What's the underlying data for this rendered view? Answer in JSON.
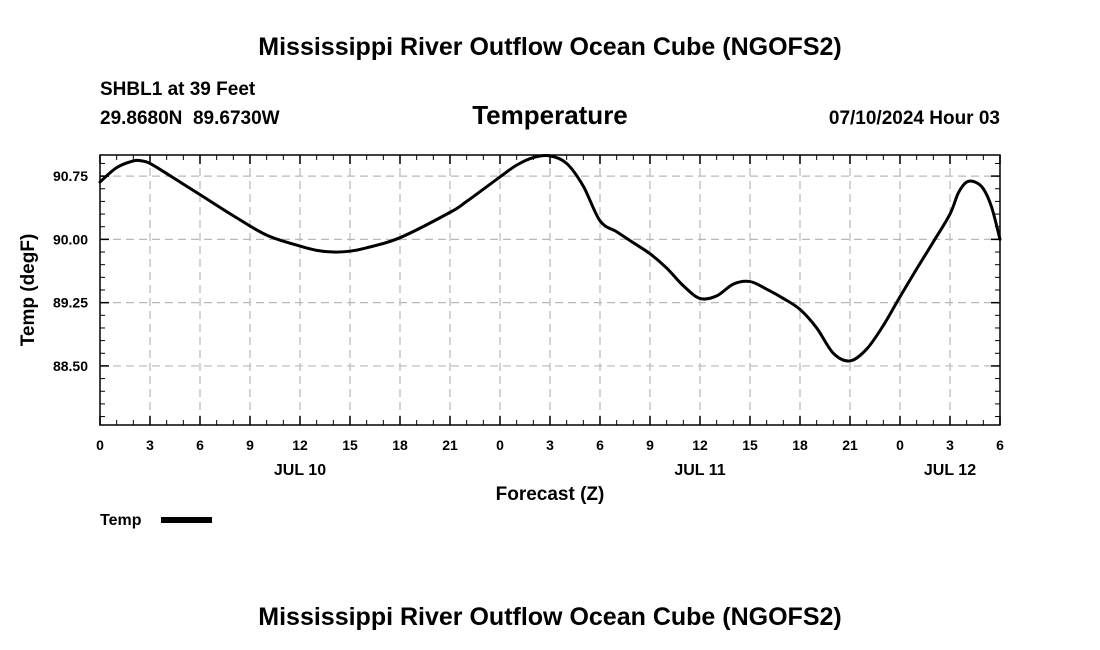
{
  "header": {
    "title": "Mississippi River Outflow Ocean Cube (NGOFS2)",
    "station": "SHBL1 at 39 Feet",
    "coords": "29.8680N  89.6730W",
    "chart_title": "Temperature",
    "datetime": "07/10/2024 Hour 03"
  },
  "footer": {
    "title": "Mississippi River Outflow Ocean Cube (NGOFS2)"
  },
  "chart_data": {
    "type": "line",
    "title": "Temperature",
    "xlabel": "Forecast (Z)",
    "ylabel": "Temp (degF)",
    "xlim": [
      0,
      54
    ],
    "ylim": [
      87.8,
      91.0
    ],
    "grid": true,
    "y_ticks": [
      88.5,
      89.25,
      90.0,
      90.75
    ],
    "y_tick_labels": [
      "88.50",
      "89.25",
      "90.00",
      "90.75"
    ],
    "x_ticks": [
      0,
      3,
      6,
      9,
      12,
      15,
      18,
      21,
      24,
      27,
      30,
      33,
      36,
      39,
      42,
      45,
      48,
      51,
      54
    ],
    "x_tick_labels": [
      "0",
      "3",
      "6",
      "9",
      "12",
      "15",
      "18",
      "21",
      "0",
      "3",
      "6",
      "9",
      "12",
      "15",
      "18",
      "21",
      "0",
      "3",
      "6"
    ],
    "date_labels": [
      {
        "x": 12,
        "label": "JUL 10"
      },
      {
        "x": 36,
        "label": "JUL 11"
      },
      {
        "x": 51,
        "label": "JUL 12"
      }
    ],
    "legend": {
      "label": "Temp",
      "placement": "bottom-left"
    },
    "series": [
      {
        "name": "Temp",
        "color": "#000000",
        "x": [
          0,
          1,
          2,
          2.5,
          3,
          4,
          6,
          8,
          10,
          12,
          13,
          14,
          15,
          16,
          18,
          21,
          22,
          24,
          25,
          26,
          27,
          28,
          29,
          30,
          31,
          32,
          33,
          34,
          35,
          36,
          37,
          38,
          39,
          40,
          41,
          42,
          43,
          44,
          45,
          46,
          47,
          48,
          49,
          50,
          51,
          51.5,
          52,
          52.5,
          53,
          53.5,
          54
        ],
        "values": [
          90.68,
          90.85,
          90.93,
          90.93,
          90.9,
          90.78,
          90.53,
          90.28,
          90.05,
          89.92,
          89.87,
          89.85,
          89.86,
          89.9,
          90.02,
          90.32,
          90.45,
          90.74,
          90.88,
          90.97,
          90.99,
          90.9,
          90.63,
          90.22,
          90.09,
          89.96,
          89.83,
          89.66,
          89.45,
          89.3,
          89.33,
          89.47,
          89.5,
          89.41,
          89.3,
          89.17,
          88.95,
          88.65,
          88.56,
          88.7,
          88.98,
          89.32,
          89.65,
          89.97,
          90.3,
          90.55,
          90.68,
          90.68,
          90.6,
          90.38,
          90.0
        ]
      }
    ]
  }
}
